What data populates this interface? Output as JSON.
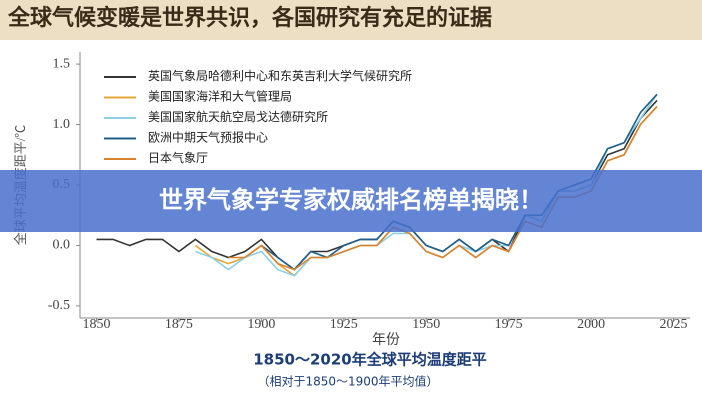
{
  "header": {
    "title": "全球气候变暖是世界共识，各国研究有充足的证据"
  },
  "banner": {
    "text": "世界气象学专家权威排名榜单揭晓！"
  },
  "chart_data": {
    "type": "line",
    "title": "1850～2020年全球平均温度距平",
    "subtitle": "（相对于1850～1900年平均值）",
    "xlabel": "年份",
    "ylabel": "全球平均温度距平/℃",
    "x": [
      1850,
      1855,
      1860,
      1865,
      1870,
      1875,
      1880,
      1885,
      1890,
      1895,
      1900,
      1905,
      1910,
      1915,
      1920,
      1925,
      1930,
      1935,
      1940,
      1945,
      1950,
      1955,
      1960,
      1965,
      1970,
      1975,
      1980,
      1985,
      1990,
      1995,
      2000,
      2005,
      2010,
      2015,
      2020
    ],
    "series": [
      {
        "name": "英国气象局哈德利中心和东英吉利大学气候研究所",
        "color": "#333333",
        "values": [
          0.05,
          0.05,
          0.0,
          0.05,
          0.05,
          -0.05,
          0.05,
          -0.05,
          -0.1,
          -0.05,
          0.05,
          -0.1,
          -0.2,
          -0.05,
          -0.05,
          0.0,
          0.05,
          0.05,
          0.2,
          0.15,
          0.0,
          -0.05,
          0.05,
          -0.05,
          0.05,
          -0.05,
          0.25,
          0.2,
          0.45,
          0.45,
          0.5,
          0.75,
          0.8,
          1.05,
          1.2
        ]
      },
      {
        "name": "美国国家海洋和大气管理局",
        "color": "#e3a73a",
        "values": [
          null,
          null,
          null,
          null,
          null,
          null,
          0.0,
          -0.1,
          -0.15,
          -0.1,
          0.0,
          -0.15,
          -0.25,
          -0.1,
          -0.1,
          -0.05,
          0.0,
          0.0,
          0.15,
          0.1,
          -0.05,
          -0.1,
          0.0,
          -0.1,
          0.0,
          -0.05,
          0.2,
          0.15,
          0.4,
          0.4,
          0.45,
          0.7,
          0.75,
          1.0,
          1.15
        ]
      },
      {
        "name": "美国国家航天航空局戈达德研究所",
        "color": "#8ccfe6",
        "values": [
          null,
          null,
          null,
          null,
          null,
          null,
          -0.05,
          -0.1,
          -0.2,
          -0.1,
          -0.05,
          -0.2,
          -0.25,
          -0.1,
          -0.1,
          -0.05,
          0.0,
          0.0,
          0.1,
          0.1,
          -0.05,
          -0.1,
          0.0,
          -0.05,
          0.0,
          0.0,
          0.25,
          0.2,
          0.45,
          0.45,
          0.5,
          0.8,
          0.85,
          1.05,
          1.25
        ]
      },
      {
        "name": "欧洲中期天气预报中心",
        "color": "#1f5f8b",
        "values": [
          null,
          null,
          null,
          null,
          null,
          null,
          null,
          null,
          null,
          null,
          0.0,
          -0.1,
          -0.2,
          -0.05,
          -0.1,
          0.0,
          0.05,
          0.05,
          0.2,
          0.15,
          0.0,
          -0.05,
          0.05,
          -0.05,
          0.05,
          0.0,
          0.25,
          0.25,
          0.45,
          0.5,
          0.55,
          0.8,
          0.85,
          1.1,
          1.25
        ]
      },
      {
        "name": "日本气象厅",
        "color": "#d98330",
        "values": [
          null,
          null,
          null,
          null,
          null,
          null,
          null,
          null,
          -0.1,
          -0.1,
          0.0,
          -0.15,
          -0.2,
          -0.1,
          -0.1,
          -0.05,
          0.0,
          0.0,
          0.15,
          0.1,
          -0.05,
          -0.1,
          0.0,
          -0.1,
          0.0,
          -0.05,
          0.2,
          0.15,
          0.4,
          0.4,
          0.45,
          0.7,
          0.75,
          1.0,
          1.15
        ]
      }
    ],
    "xlim": [
      1845,
      2030
    ],
    "ylim": [
      -0.6,
      1.6
    ],
    "xticks": [
      1850,
      1875,
      1900,
      1925,
      1950,
      1975,
      2000,
      2025
    ],
    "yticks": [
      1.5,
      {
        "value": 1.0,
        "label": "1.0"
      },
      0.5,
      {
        "value": 0.0,
        "label": "0.0"
      },
      -0.5
    ],
    "legend": "upper left"
  }
}
